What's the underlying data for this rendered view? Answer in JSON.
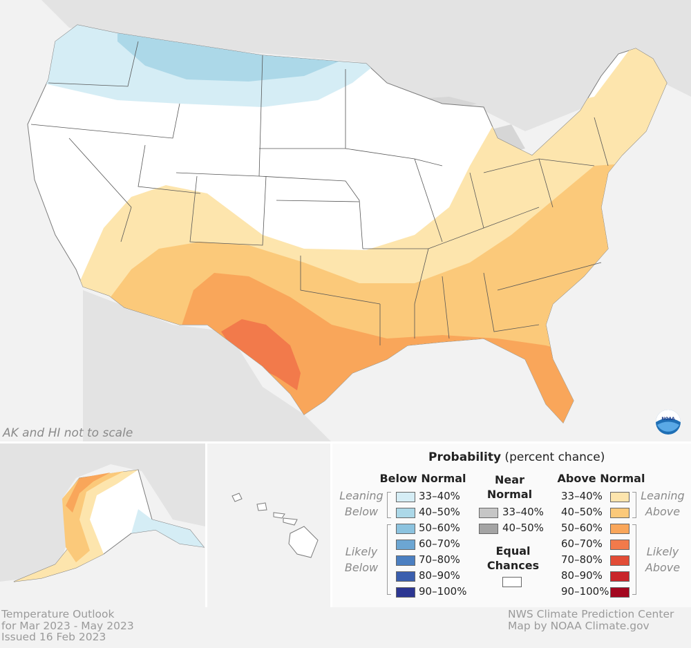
{
  "map": {
    "scale_note": "AK and HI not to scale",
    "footer_left": [
      "Temperature Outlook",
      "for Mar 2023 - May 2023",
      "Issued 16 Feb 2023"
    ],
    "footer_right": [
      "NWS Climate Prediction Center",
      "Map by NOAA Climate.gov"
    ],
    "logo_text": "NOAA"
  },
  "legend": {
    "title_bold": "Probability",
    "title_rest": " (percent chance)",
    "below": {
      "heading": "Below Normal",
      "leaning_label": [
        "Leaning",
        "Below"
      ],
      "likely_label": [
        "Likely",
        "Below"
      ],
      "rows": [
        {
          "label": "33–40%",
          "color": "#d5edf5"
        },
        {
          "label": "40–50%",
          "color": "#acd8e8"
        },
        {
          "label": "50–60%",
          "color": "#8cc3df"
        },
        {
          "label": "60–70%",
          "color": "#6ca6d3"
        },
        {
          "label": "70–80%",
          "color": "#4b7fc1"
        },
        {
          "label": "80–90%",
          "color": "#3a5eae"
        },
        {
          "label": "90–100%",
          "color": "#2c3692"
        }
      ]
    },
    "near": {
      "heading": [
        "Near",
        "Normal"
      ],
      "rows": [
        {
          "label": "33–40%",
          "color": "#c6c6c6"
        },
        {
          "label": "40–50%",
          "color": "#a4a4a4"
        }
      ],
      "equal_heading": [
        "Equal",
        "Chances"
      ],
      "equal_color": "#ffffff"
    },
    "above": {
      "heading": "Above Normal",
      "leaning_label": [
        "Leaning",
        "Above"
      ],
      "likely_label": [
        "Likely",
        "Above"
      ],
      "rows": [
        {
          "label": "33–40%",
          "color": "#fde5ad"
        },
        {
          "label": "40–50%",
          "color": "#fbc97a"
        },
        {
          "label": "50–60%",
          "color": "#f9a65a"
        },
        {
          "label": "60–70%",
          "color": "#f27a4b"
        },
        {
          "label": "70–80%",
          "color": "#e24c36"
        },
        {
          "label": "80–90%",
          "color": "#c9252a"
        },
        {
          "label": "90–100%",
          "color": "#a3071f"
        }
      ]
    }
  }
}
